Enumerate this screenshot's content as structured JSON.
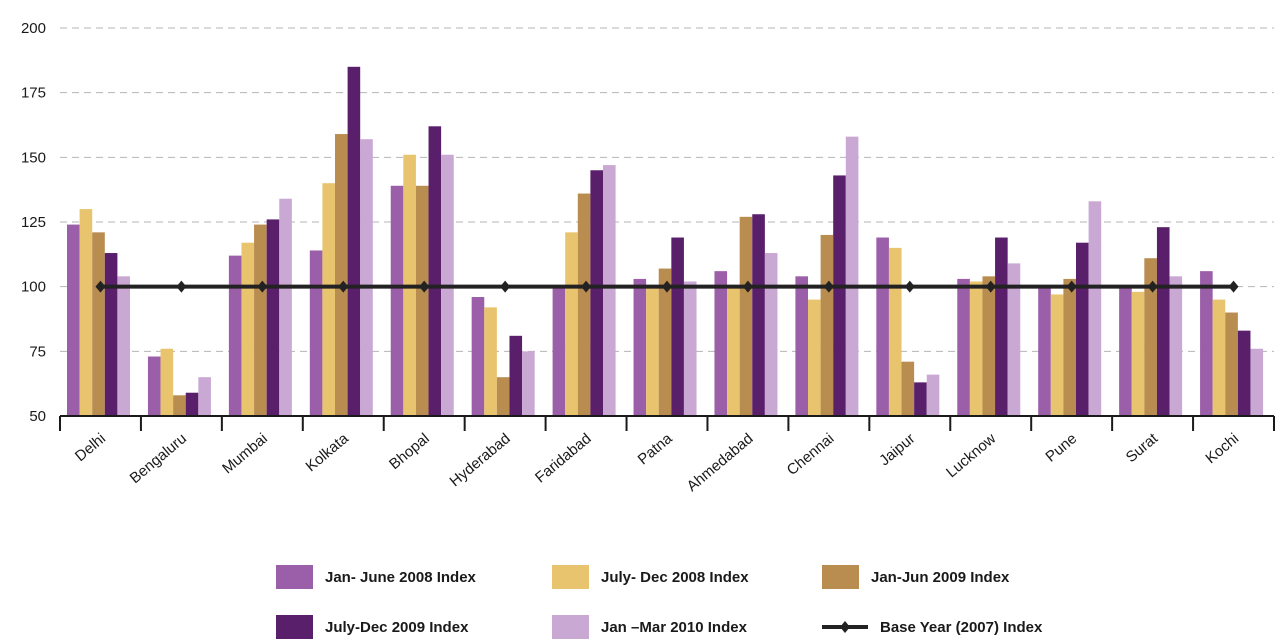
{
  "chart_data": {
    "type": "bar",
    "categories": [
      "Delhi",
      "Bengaluru",
      "Mumbai",
      "Kolkata",
      "Bhopal",
      "Hyderabad",
      "Faridabad",
      "Patna",
      "Ahmedabad",
      "Chennai",
      "Jaipur",
      "Lucknow",
      "Pune",
      "Surat",
      "Kochi"
    ],
    "series": [
      {
        "name": "Jan- June 2008 Index",
        "color": "#9b5fa9",
        "values": [
          124,
          73,
          112,
          114,
          139,
          96,
          100,
          103,
          106,
          104,
          119,
          103,
          100,
          100,
          106
        ]
      },
      {
        "name": "July- Dec 2008 Index",
        "color": "#e8c46e",
        "values": [
          130,
          76,
          117,
          140,
          151,
          92,
          121,
          100,
          100,
          95,
          115,
          102,
          97,
          98,
          95
        ]
      },
      {
        "name": "Jan-Jun 2009 Index",
        "color": "#b98c4f",
        "values": [
          121,
          58,
          124,
          159,
          139,
          65,
          136,
          107,
          127,
          120,
          71,
          104,
          103,
          111,
          90
        ]
      },
      {
        "name": "July-Dec 2009 Index",
        "color": "#5a1f6b",
        "values": [
          113,
          59,
          126,
          185,
          162,
          81,
          145,
          119,
          128,
          143,
          63,
          119,
          117,
          123,
          83
        ]
      },
      {
        "name": "Jan –Mar 2010 Index",
        "color": "#c9a8d4",
        "values": [
          104,
          65,
          134,
          157,
          151,
          75,
          147,
          102,
          113,
          158,
          66,
          109,
          133,
          104,
          76
        ]
      }
    ],
    "baseline": {
      "name": "Base Year (2007) Index",
      "color": "#222222",
      "value": 100
    },
    "ylim": [
      50,
      200
    ],
    "yticks": [
      50,
      75,
      100,
      125,
      150,
      175,
      200
    ],
    "grid": true,
    "legend_placement": "bottom"
  }
}
